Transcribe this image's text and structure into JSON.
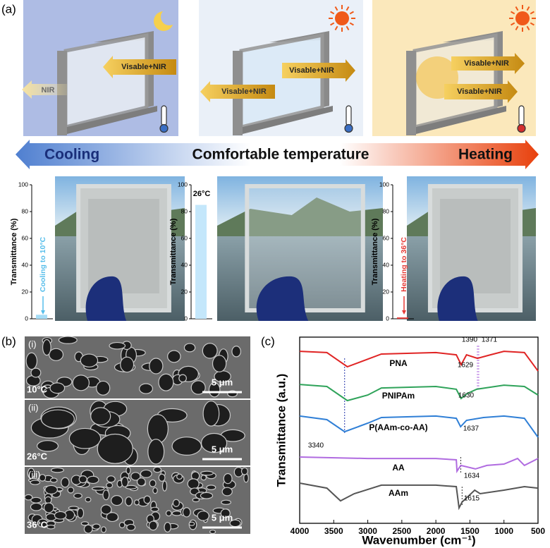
{
  "figure": {
    "panel_labels": [
      "(a)",
      "(b)",
      "(c)"
    ],
    "scenes": [
      {
        "labels": [
          "NIR",
          "Visable+NIR"
        ]
      },
      {
        "labels": [
          "Visable+NIR",
          "Visable+NIR"
        ]
      },
      {
        "labels": [
          "Visable+NIR",
          "Visable+NIR"
        ]
      }
    ],
    "temperature_bar": [
      "Cooling",
      "Comfortable temperature",
      "Heating"
    ],
    "sem": [
      {
        "label": "(i)",
        "temperature": "10°C",
        "scale": "5 μm"
      },
      {
        "label": "(ii)",
        "temperature": "26°C",
        "scale": "5 μm"
      },
      {
        "label": "(iii)",
        "temperature": "36°C",
        "scale": "5 μm"
      }
    ]
  },
  "chart_data": [
    {
      "type": "bar",
      "ylabel": "Transmittance (%)",
      "categories": [
        null
      ],
      "values": [
        3
      ],
      "color": "#a6dcf6",
      "ylim": [
        0,
        100
      ],
      "yticks": [
        0,
        20,
        40,
        60,
        80,
        100
      ],
      "annotation": "Cooling to 10°C",
      "annotation_color": "#55bdea"
    },
    {
      "type": "bar",
      "ylabel": "Transmittance (%)",
      "categories": [
        null
      ],
      "values": [
        85
      ],
      "color": "#c4e7fb",
      "ylim": [
        0,
        100
      ],
      "yticks": [
        0,
        20,
        40,
        60,
        80,
        100
      ],
      "annotation": "26°C",
      "annotation_color": "#000000"
    },
    {
      "type": "bar",
      "ylabel": "Transmittance (%)",
      "categories": [
        null
      ],
      "values": [
        1
      ],
      "color": "#e53935",
      "ylim": [
        0,
        100
      ],
      "yticks": [
        0,
        20,
        40,
        60,
        80,
        100
      ],
      "annotation": "Heating to 36°C",
      "annotation_color": "#e53935"
    },
    {
      "type": "line",
      "xlabel": "Wavenumber (cm⁻¹)",
      "ylabel": "Transmittance (a.u.)",
      "xlim": [
        4000,
        500
      ],
      "xticks": [
        4000,
        3500,
        3000,
        2500,
        2000,
        1500,
        1000,
        500
      ],
      "ylim": [
        0,
        100
      ],
      "series": [
        {
          "name": "PNA",
          "color": "#e02424",
          "x": [
            4000,
            3600,
            3300,
            2800,
            2000,
            1700,
            1629,
            1550,
            1390,
            1200,
            1000,
            700,
            500
          ],
          "values": [
            92.4,
            91.7,
            84.1,
            90.9,
            91.7,
            90.5,
            85.2,
            90.5,
            88.6,
            90.5,
            92.4,
            91.7,
            81.8
          ]
        },
        {
          "name": "PNIPAm",
          "color": "#2fa35a",
          "x": [
            4000,
            3600,
            3300,
            3000,
            2800,
            2000,
            1700,
            1630,
            1540,
            1400,
            1000,
            700,
            500
          ],
          "values": [
            74.6,
            73.5,
            65.9,
            68.9,
            72.7,
            73.5,
            72.0,
            67.0,
            69.7,
            72.0,
            74.2,
            73.5,
            68.9
          ]
        },
        {
          "name": "P(AAm-co-AA)",
          "color": "#2f7fd6",
          "x": [
            4000,
            3600,
            3340,
            3000,
            2800,
            2000,
            1700,
            1637,
            1550,
            1300,
            1000,
            700,
            500
          ],
          "values": [
            57.6,
            55.7,
            49.2,
            53.8,
            56.8,
            57.6,
            56.4,
            51.9,
            55.3,
            56.8,
            57.6,
            56.4,
            46.2
          ]
        },
        {
          "name": "AA",
          "color": "#b06be0",
          "x": [
            4000,
            3000,
            2000,
            1700,
            1690,
            1634,
            1420,
            1250,
            1000,
            800,
            700,
            500
          ],
          "values": [
            35.6,
            34.8,
            34.8,
            34.1,
            28.0,
            31.1,
            29.2,
            31.1,
            31.8,
            34.8,
            31.1,
            34.8
          ]
        },
        {
          "name": "AAm",
          "color": "#555555",
          "x": [
            4000,
            3600,
            3400,
            3200,
            3100,
            2800,
            2400,
            2000,
            1700,
            1660,
            1615,
            1430,
            1350,
            1000,
            700,
            500
          ],
          "values": [
            21.6,
            18.9,
            12.1,
            15.9,
            17.0,
            20.5,
            20.5,
            20.5,
            19.7,
            8.3,
            11.4,
            17.8,
            15.9,
            17.8,
            19.7,
            18.9
          ]
        }
      ],
      "annotations": [
        {
          "text": "3340",
          "x": 3340
        },
        {
          "text": "1629",
          "x": 1629
        },
        {
          "text": "1630",
          "x": 1630
        },
        {
          "text": "1637",
          "x": 1637
        },
        {
          "text": "1634",
          "x": 1634
        },
        {
          "text": "1615",
          "x": 1615
        },
        {
          "text": "1390",
          "x": 1390
        },
        {
          "text": "1371",
          "x": 1371
        }
      ]
    }
  ]
}
